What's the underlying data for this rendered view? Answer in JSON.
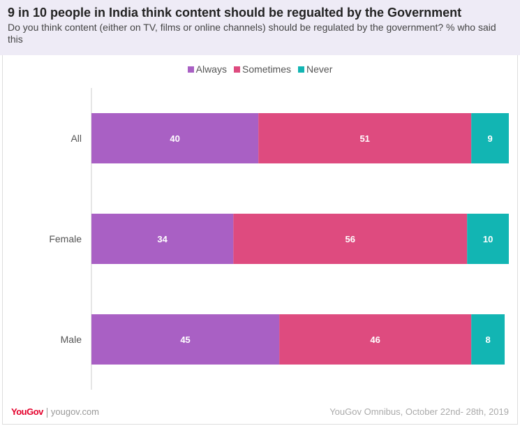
{
  "title": "9 in 10 people in India think content should be regualted by the Government",
  "subtitle": "Do you think content (either on TV, films or online channels) should be regulated by the government? % who said this",
  "footer": {
    "logo": "YouGov",
    "site": "yougov.com",
    "source": "YouGov Omnibus, October 22nd- 28th, 2019"
  },
  "chart_data": {
    "type": "bar",
    "orientation": "horizontal",
    "stacked": true,
    "categories": [
      "All",
      "Female",
      "Male"
    ],
    "series": [
      {
        "name": "Always",
        "color": "#a960c4",
        "values": [
          40,
          34,
          45
        ]
      },
      {
        "name": "Sometimes",
        "color": "#de4b7f",
        "values": [
          51,
          56,
          46
        ]
      },
      {
        "name": "Never",
        "color": "#12b5b3",
        "values": [
          9,
          10,
          8
        ]
      }
    ],
    "xlim": [
      0,
      100
    ],
    "legend": "top-center",
    "grid": false
  }
}
